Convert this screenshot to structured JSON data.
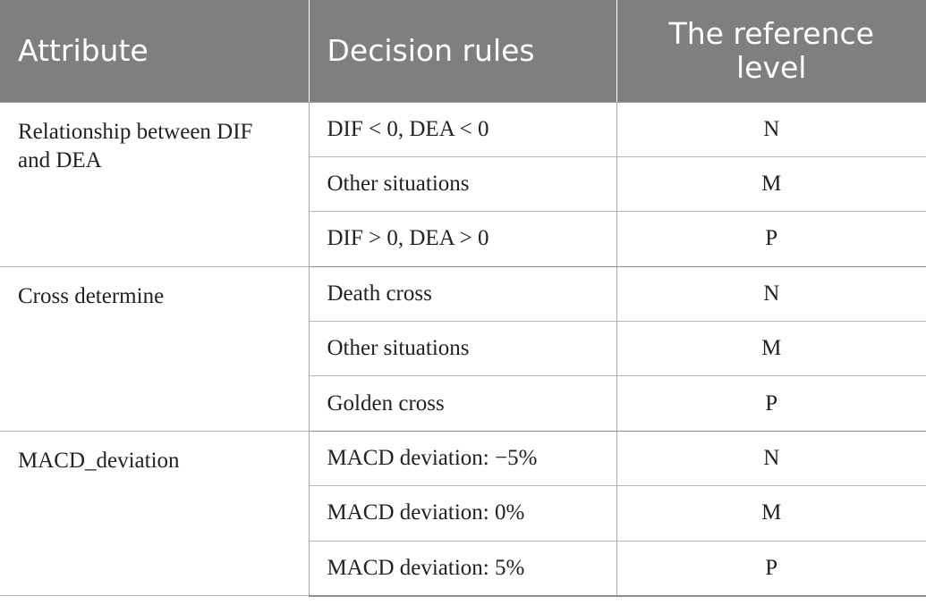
{
  "header": {
    "attribute": "Attribute",
    "decision_rules": "Decision rules",
    "reference_level": "The reference level"
  },
  "groups": [
    {
      "attribute": "Relationship between DIF and DEA",
      "rows": [
        {
          "rule": "DIF < 0, DEA < 0",
          "level": "N"
        },
        {
          "rule": "Other situations",
          "level": "M"
        },
        {
          "rule": "DIF > 0, DEA > 0",
          "level": "P"
        }
      ]
    },
    {
      "attribute": "Cross determine",
      "rows": [
        {
          "rule": "Death cross",
          "level": "N"
        },
        {
          "rule": "Other situations",
          "level": "M"
        },
        {
          "rule": "Golden cross",
          "level": "P"
        }
      ]
    },
    {
      "attribute": "MACD_deviation",
      "rows": [
        {
          "rule": "MACD deviation: −5%",
          "level": "N"
        },
        {
          "rule": "MACD deviation: 0%",
          "level": "M"
        },
        {
          "rule": "MACD deviation: 5%",
          "level": "P"
        }
      ]
    }
  ]
}
